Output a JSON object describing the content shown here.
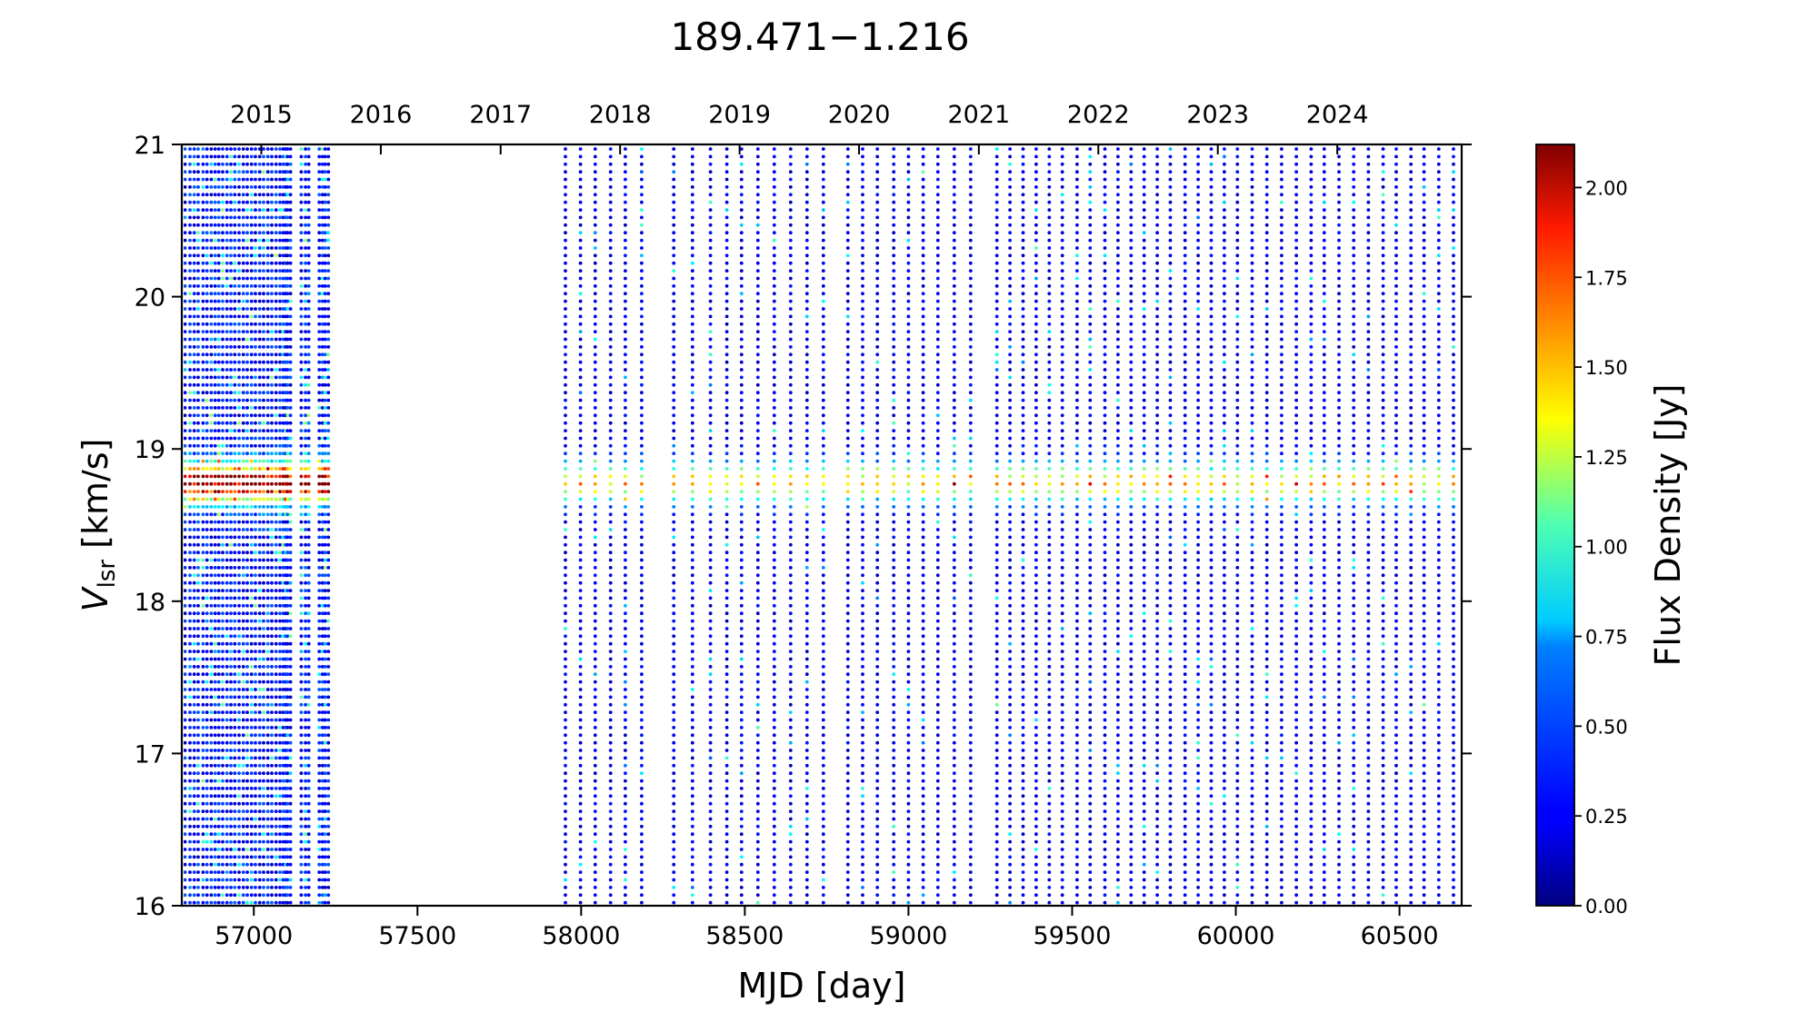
{
  "chart_data": {
    "type": "scatter",
    "title": "189.471−1.216",
    "xlabel": "MJD [day]",
    "ylabel_main": "V",
    "ylabel_sub": "lsr",
    "ylabel_unit": " [km/s]",
    "colorbar_label": "Flux Density [Jy]",
    "xlim": [
      56780,
      60690
    ],
    "ylim": [
      16,
      21
    ],
    "color_range": [
      0,
      2.12
    ],
    "colormap": "jet",
    "x_ticks": [
      {
        "value": 57000,
        "label": "57000"
      },
      {
        "value": 57500,
        "label": "57500"
      },
      {
        "value": 58000,
        "label": "58000"
      },
      {
        "value": 58500,
        "label": "58500"
      },
      {
        "value": 59000,
        "label": "59000"
      },
      {
        "value": 59500,
        "label": "59500"
      },
      {
        "value": 60000,
        "label": "60000"
      },
      {
        "value": 60500,
        "label": "60500"
      }
    ],
    "year_ticks": [
      {
        "value": 57023,
        "label": "2015"
      },
      {
        "value": 57388,
        "label": "2016"
      },
      {
        "value": 57754,
        "label": "2017"
      },
      {
        "value": 58119,
        "label": "2018"
      },
      {
        "value": 58484,
        "label": "2019"
      },
      {
        "value": 58849,
        "label": "2020"
      },
      {
        "value": 59215,
        "label": "2021"
      },
      {
        "value": 59580,
        "label": "2022"
      },
      {
        "value": 59945,
        "label": "2023"
      },
      {
        "value": 60310,
        "label": "2024"
      }
    ],
    "y_ticks": [
      {
        "value": 16,
        "label": "16"
      },
      {
        "value": 17,
        "label": "17"
      },
      {
        "value": 18,
        "label": "18"
      },
      {
        "value": 19,
        "label": "19"
      },
      {
        "value": 20,
        "label": "20"
      },
      {
        "value": 21,
        "label": "21"
      }
    ],
    "colorbar_ticks": [
      {
        "value": 0.0,
        "label": "0.00"
      },
      {
        "value": 0.25,
        "label": "0.25"
      },
      {
        "value": 0.5,
        "label": "0.50"
      },
      {
        "value": 0.75,
        "label": "0.75"
      },
      {
        "value": 1.0,
        "label": "1.00"
      },
      {
        "value": 1.25,
        "label": "1.25"
      },
      {
        "value": 1.5,
        "label": "1.50"
      },
      {
        "value": 1.75,
        "label": "1.75"
      },
      {
        "value": 2.0,
        "label": "2.00"
      }
    ],
    "observation_dates": [
      56790,
      56805,
      56818,
      56830,
      56845,
      56857,
      56870,
      56882,
      56893,
      56905,
      56918,
      56930,
      56942,
      56955,
      56968,
      56980,
      56993,
      57005,
      57018,
      57030,
      57043,
      57055,
      57068,
      57080,
      57090,
      57097,
      57103,
      57112,
      57145,
      57158,
      57168,
      57200,
      57210,
      57218,
      57228,
      57952,
      57998,
      58043,
      58090,
      58135,
      58185,
      58283,
      58340,
      58395,
      58445,
      58490,
      58540,
      58590,
      58640,
      58690,
      58740,
      58815,
      58860,
      58905,
      58955,
      59000,
      59045,
      59090,
      59140,
      59190,
      59270,
      59310,
      59350,
      59390,
      59430,
      59470,
      59515,
      59555,
      59600,
      59640,
      59680,
      59720,
      59760,
      59800,
      59845,
      59885,
      59925,
      59965,
      60005,
      60050,
      60095,
      60140,
      60185,
      60230,
      60270,
      60315,
      60360,
      60405,
      60450,
      60490,
      60535,
      60575,
      60620,
      60665
    ],
    "velocity_channel_step": 0.05,
    "peak_feature": {
      "velocity": 18.78,
      "width": 0.09,
      "peak_flux_early": 1.95,
      "peak_flux_late": 1.25
    },
    "baseline_flux": 0.12
  }
}
